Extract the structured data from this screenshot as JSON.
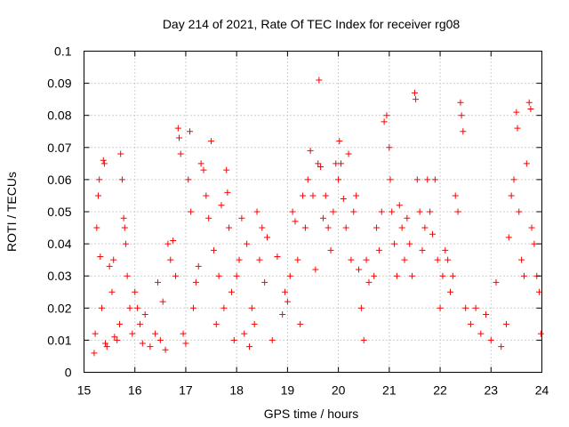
{
  "chart_data": {
    "type": "scatter",
    "title": "Day 214 of 2021, Rate Of TEC Index for receiver rg08",
    "xlabel": "GPS time / hours",
    "ylabel": "ROTI / TECUs",
    "xlim": [
      15,
      24
    ],
    "ylim": [
      0,
      0.1
    ],
    "x_ticks": [
      15,
      16,
      17,
      18,
      19,
      20,
      21,
      22,
      23,
      24
    ],
    "x_tick_labels": [
      "15",
      "16",
      "17",
      "18",
      "19",
      "20",
      "21",
      "22",
      "23",
      "24"
    ],
    "y_ticks": [
      0,
      0.01,
      0.02,
      0.03,
      0.04,
      0.05,
      0.06,
      0.07,
      0.08,
      0.09,
      0.1
    ],
    "y_tick_labels": [
      "0",
      "0.01",
      "0.02",
      "0.03",
      "0.04",
      "0.05",
      "0.06",
      "0.07",
      "0.08",
      "0.09",
      "0.1"
    ],
    "grid": true,
    "marker": "+",
    "color": "#ff0000",
    "points": [
      [
        15.2,
        0.006
      ],
      [
        15.22,
        0.012
      ],
      [
        15.25,
        0.045
      ],
      [
        15.28,
        0.055
      ],
      [
        15.3,
        0.06
      ],
      [
        15.32,
        0.036
      ],
      [
        15.35,
        0.02
      ],
      [
        15.38,
        0.066
      ],
      [
        15.4,
        0.065
      ],
      [
        15.42,
        0.009
      ],
      [
        15.45,
        0.008
      ],
      [
        15.5,
        0.033
      ],
      [
        15.55,
        0.025
      ],
      [
        15.58,
        0.035
      ],
      [
        15.6,
        0.011
      ],
      [
        15.65,
        0.01
      ],
      [
        15.7,
        0.015
      ],
      [
        15.72,
        0.068
      ],
      [
        15.75,
        0.06
      ],
      [
        15.78,
        0.048
      ],
      [
        15.8,
        0.045
      ],
      [
        15.82,
        0.04
      ],
      [
        15.85,
        0.03
      ],
      [
        15.9,
        0.02
      ],
      [
        15.95,
        0.012
      ],
      [
        16.0,
        0.025
      ],
      [
        16.05,
        0.02
      ],
      [
        16.1,
        0.015
      ],
      [
        16.15,
        0.009
      ],
      [
        16.2,
        0.018
      ],
      [
        16.3,
        0.008
      ],
      [
        16.4,
        0.012
      ],
      [
        16.45,
        0.028
      ],
      [
        16.5,
        0.01
      ],
      [
        16.55,
        0.022
      ],
      [
        16.6,
        0.007
      ],
      [
        16.65,
        0.04
      ],
      [
        16.7,
        0.035
      ],
      [
        16.75,
        0.041
      ],
      [
        16.8,
        0.03
      ],
      [
        16.85,
        0.076
      ],
      [
        16.87,
        0.073
      ],
      [
        16.9,
        0.068
      ],
      [
        16.95,
        0.012
      ],
      [
        17.0,
        0.009
      ],
      [
        17.05,
        0.06
      ],
      [
        17.08,
        0.075
      ],
      [
        17.1,
        0.05
      ],
      [
        17.15,
        0.02
      ],
      [
        17.2,
        0.028
      ],
      [
        17.25,
        0.033
      ],
      [
        17.3,
        0.065
      ],
      [
        17.35,
        0.063
      ],
      [
        17.4,
        0.055
      ],
      [
        17.45,
        0.048
      ],
      [
        17.5,
        0.072
      ],
      [
        17.55,
        0.038
      ],
      [
        17.6,
        0.015
      ],
      [
        17.65,
        0.03
      ],
      [
        17.7,
        0.052
      ],
      [
        17.75,
        0.02
      ],
      [
        17.8,
        0.063
      ],
      [
        17.82,
        0.056
      ],
      [
        17.85,
        0.045
      ],
      [
        17.9,
        0.025
      ],
      [
        17.95,
        0.01
      ],
      [
        18.0,
        0.03
      ],
      [
        18.05,
        0.035
      ],
      [
        18.1,
        0.048
      ],
      [
        18.15,
        0.012
      ],
      [
        18.2,
        0.04
      ],
      [
        18.25,
        0.008
      ],
      [
        18.3,
        0.02
      ],
      [
        18.35,
        0.015
      ],
      [
        18.4,
        0.05
      ],
      [
        18.45,
        0.035
      ],
      [
        18.5,
        0.045
      ],
      [
        18.55,
        0.028
      ],
      [
        18.6,
        0.042
      ],
      [
        18.7,
        0.01
      ],
      [
        18.8,
        0.036
      ],
      [
        18.9,
        0.018
      ],
      [
        18.95,
        0.025
      ],
      [
        19.0,
        0.022
      ],
      [
        19.05,
        0.03
      ],
      [
        19.1,
        0.05
      ],
      [
        19.15,
        0.047
      ],
      [
        19.2,
        0.035
      ],
      [
        19.25,
        0.015
      ],
      [
        19.3,
        0.055
      ],
      [
        19.35,
        0.045
      ],
      [
        19.4,
        0.06
      ],
      [
        19.45,
        0.069
      ],
      [
        19.5,
        0.055
      ],
      [
        19.55,
        0.032
      ],
      [
        19.6,
        0.065
      ],
      [
        19.62,
        0.091
      ],
      [
        19.65,
        0.064
      ],
      [
        19.7,
        0.048
      ],
      [
        19.75,
        0.055
      ],
      [
        19.8,
        0.045
      ],
      [
        19.85,
        0.038
      ],
      [
        19.9,
        0.05
      ],
      [
        19.95,
        0.065
      ],
      [
        20.0,
        0.06
      ],
      [
        20.02,
        0.072
      ],
      [
        20.05,
        0.065
      ],
      [
        20.1,
        0.054
      ],
      [
        20.15,
        0.045
      ],
      [
        20.2,
        0.068
      ],
      [
        20.25,
        0.035
      ],
      [
        20.3,
        0.05
      ],
      [
        20.35,
        0.055
      ],
      [
        20.4,
        0.032
      ],
      [
        20.45,
        0.02
      ],
      [
        20.5,
        0.01
      ],
      [
        20.55,
        0.035
      ],
      [
        20.6,
        0.028
      ],
      [
        20.7,
        0.03
      ],
      [
        20.75,
        0.045
      ],
      [
        20.8,
        0.038
      ],
      [
        20.85,
        0.05
      ],
      [
        20.9,
        0.078
      ],
      [
        20.95,
        0.08
      ],
      [
        21.0,
        0.07
      ],
      [
        21.02,
        0.06
      ],
      [
        21.05,
        0.05
      ],
      [
        21.1,
        0.04
      ],
      [
        21.15,
        0.03
      ],
      [
        21.2,
        0.052
      ],
      [
        21.25,
        0.045
      ],
      [
        21.3,
        0.035
      ],
      [
        21.35,
        0.048
      ],
      [
        21.4,
        0.04
      ],
      [
        21.45,
        0.03
      ],
      [
        21.5,
        0.087
      ],
      [
        21.52,
        0.085
      ],
      [
        21.55,
        0.06
      ],
      [
        21.6,
        0.05
      ],
      [
        21.65,
        0.038
      ],
      [
        21.7,
        0.045
      ],
      [
        21.75,
        0.06
      ],
      [
        21.8,
        0.05
      ],
      [
        21.85,
        0.043
      ],
      [
        21.9,
        0.06
      ],
      [
        21.95,
        0.035
      ],
      [
        22.0,
        0.02
      ],
      [
        22.05,
        0.03
      ],
      [
        22.1,
        0.038
      ],
      [
        22.15,
        0.035
      ],
      [
        22.2,
        0.025
      ],
      [
        22.25,
        0.03
      ],
      [
        22.3,
        0.055
      ],
      [
        22.35,
        0.05
      ],
      [
        22.4,
        0.084
      ],
      [
        22.42,
        0.08
      ],
      [
        22.45,
        0.075
      ],
      [
        22.5,
        0.02
      ],
      [
        22.6,
        0.015
      ],
      [
        22.7,
        0.02
      ],
      [
        22.8,
        0.012
      ],
      [
        22.9,
        0.018
      ],
      [
        23.0,
        0.01
      ],
      [
        23.1,
        0.028
      ],
      [
        23.2,
        0.008
      ],
      [
        23.3,
        0.015
      ],
      [
        23.35,
        0.042
      ],
      [
        23.4,
        0.055
      ],
      [
        23.45,
        0.06
      ],
      [
        23.5,
        0.081
      ],
      [
        23.52,
        0.076
      ],
      [
        23.55,
        0.05
      ],
      [
        23.6,
        0.035
      ],
      [
        23.65,
        0.03
      ],
      [
        23.7,
        0.065
      ],
      [
        23.75,
        0.084
      ],
      [
        23.78,
        0.082
      ],
      [
        23.8,
        0.045
      ],
      [
        23.85,
        0.04
      ],
      [
        23.9,
        0.03
      ],
      [
        23.95,
        0.025
      ],
      [
        23.98,
        0.012
      ]
    ]
  }
}
